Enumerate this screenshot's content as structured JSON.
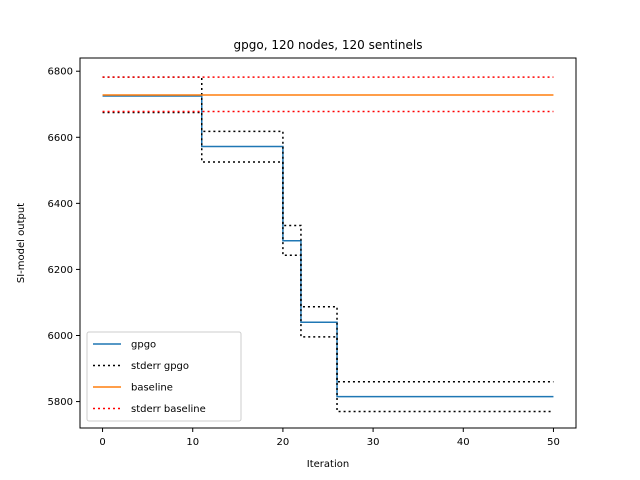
{
  "chart_data": {
    "type": "line",
    "title": "gpgo, 120 nodes, 120 sentinels",
    "xlabel": "Iteration",
    "ylabel": "SI-model output",
    "xlim": [
      -2.5,
      52.5
    ],
    "ylim": [
      5720,
      6840
    ],
    "xticks": [
      0,
      10,
      20,
      30,
      40,
      50
    ],
    "yticks": [
      5800,
      6000,
      6200,
      6400,
      6600,
      6800
    ],
    "grid": false,
    "legend_position": "lower-left",
    "series": [
      {
        "name": "gpgo",
        "color": "#1f77b4",
        "style": "solid",
        "step": true,
        "x": [
          0,
          10,
          11,
          19,
          20,
          21,
          22,
          25,
          26,
          50
        ],
        "y": [
          6725,
          6725,
          6572,
          6572,
          6287,
          6287,
          6040,
          6040,
          5815,
          5815
        ]
      },
      {
        "name": "stderr gpgo",
        "color": "#000000",
        "style": "dotted",
        "step": true,
        "x": [
          0,
          10,
          11,
          19,
          20,
          21,
          22,
          25,
          26,
          50
        ],
        "y": [
          6782,
          6782,
          6618,
          6618,
          6333,
          6333,
          6087,
          6087,
          5860,
          5860
        ]
      },
      {
        "name": "",
        "color": "#000000",
        "style": "dotted",
        "step": true,
        "x": [
          0,
          10,
          11,
          19,
          20,
          21,
          22,
          25,
          26,
          50
        ],
        "y": [
          6675,
          6675,
          6525,
          6525,
          6243,
          6243,
          5996,
          5996,
          5770,
          5770
        ]
      },
      {
        "name": "baseline",
        "color": "#ff7f0e",
        "style": "solid",
        "step": false,
        "x": [
          0,
          50
        ],
        "y": [
          6728,
          6728
        ]
      },
      {
        "name": "stderr baseline",
        "color": "#ff0000",
        "style": "dotted",
        "step": false,
        "x": [
          0,
          50
        ],
        "y": [
          6782,
          6782
        ]
      },
      {
        "name": "",
        "color": "#ff0000",
        "style": "dotted",
        "step": false,
        "x": [
          0,
          50
        ],
        "y": [
          6678,
          6678
        ]
      }
    ],
    "legend": [
      {
        "label": "gpgo",
        "color": "#1f77b4",
        "style": "solid"
      },
      {
        "label": "stderr gpgo",
        "color": "#000000",
        "style": "dotted"
      },
      {
        "label": "baseline",
        "color": "#ff7f0e",
        "style": "solid"
      },
      {
        "label": "stderr baseline",
        "color": "#ff0000",
        "style": "dotted"
      }
    ]
  }
}
